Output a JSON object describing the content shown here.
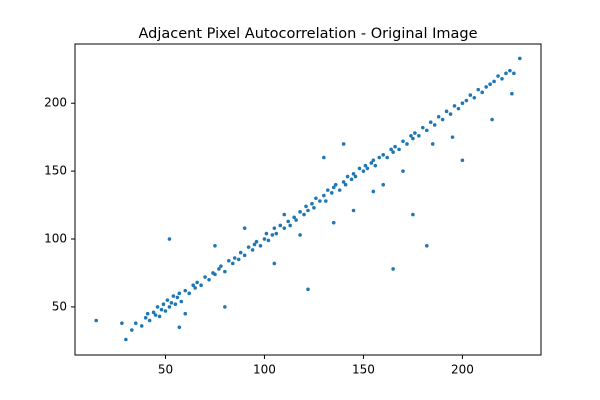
{
  "chart_data": {
    "type": "scatter",
    "title": "Adjacent Pixel Autocorrelation - Original Image",
    "color": "#1f77b4",
    "x": [
      15,
      28,
      30,
      33,
      35,
      38,
      40,
      41,
      42,
      44,
      45,
      46,
      47,
      48,
      49,
      50,
      51,
      52,
      53,
      54,
      55,
      56,
      57,
      58,
      60,
      62,
      64,
      65,
      66,
      68,
      70,
      72,
      74,
      75,
      77,
      78,
      80,
      82,
      84,
      85,
      87,
      88,
      90,
      92,
      94,
      95,
      96,
      98,
      100,
      101,
      102,
      104,
      105,
      106,
      108,
      110,
      112,
      113,
      115,
      116,
      118,
      120,
      121,
      122,
      124,
      125,
      126,
      128,
      130,
      131,
      132,
      134,
      135,
      136,
      138,
      140,
      141,
      142,
      144,
      145,
      146,
      148,
      150,
      151,
      152,
      154,
      155,
      156,
      158,
      160,
      162,
      164,
      165,
      166,
      168,
      170,
      172,
      174,
      175,
      176,
      178,
      180,
      182,
      184,
      186,
      188,
      190,
      192,
      194,
      196,
      198,
      200,
      202,
      204,
      206,
      208,
      210,
      212,
      214,
      216,
      218,
      220,
      222,
      224,
      226,
      229,
      52,
      122,
      165,
      182,
      175,
      200,
      215,
      225,
      80,
      110,
      57,
      130,
      160,
      195,
      90,
      140,
      60,
      75,
      105,
      118,
      135,
      145,
      170,
      185,
      155
    ],
    "values": [
      40,
      38,
      26,
      33,
      38,
      36,
      42,
      45,
      40,
      46,
      44,
      50,
      43,
      48,
      52,
      47,
      55,
      50,
      53,
      58,
      52,
      57,
      60,
      54,
      62,
      60,
      66,
      64,
      68,
      66,
      72,
      70,
      75,
      74,
      78,
      80,
      76,
      84,
      82,
      86,
      85,
      90,
      88,
      94,
      92,
      96,
      98,
      95,
      100,
      104,
      99,
      103,
      108,
      104,
      110,
      108,
      113,
      110,
      116,
      114,
      120,
      118,
      124,
      121,
      126,
      123,
      130,
      128,
      132,
      128,
      136,
      134,
      138,
      140,
      136,
      142,
      140,
      146,
      144,
      148,
      146,
      152,
      150,
      154,
      152,
      156,
      158,
      154,
      160,
      162,
      160,
      166,
      164,
      168,
      166,
      172,
      170,
      176,
      174,
      178,
      176,
      182,
      180,
      186,
      184,
      190,
      188,
      194,
      192,
      198,
      196,
      200,
      202,
      206,
      204,
      210,
      208,
      212,
      214,
      216,
      220,
      218,
      222,
      224,
      222,
      233,
      100,
      63,
      78,
      95,
      118,
      158,
      188,
      207,
      50,
      118,
      35,
      160,
      140,
      175,
      108,
      170,
      45,
      95,
      82,
      103,
      112,
      121,
      150,
      170,
      135
    ],
    "xlim": [
      4.3,
      239.7
    ],
    "xticks": [
      50,
      100,
      150,
      200
    ],
    "ylim": [
      14.6,
      243.6
    ],
    "yticks": [
      50,
      100,
      150,
      200
    ]
  }
}
